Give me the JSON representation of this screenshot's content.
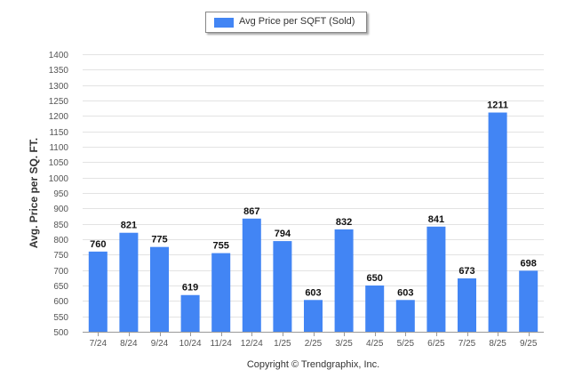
{
  "chart_data": {
    "type": "bar",
    "title": "",
    "xlabel": "",
    "ylabel": "Avg. Price per SQ. FT.",
    "ylim": [
      500,
      1400
    ],
    "ytick_step": 50,
    "grid": true,
    "legend_position": "top-center",
    "categories": [
      "7/24",
      "8/24",
      "9/24",
      "10/24",
      "11/24",
      "12/24",
      "1/25",
      "2/25",
      "3/25",
      "4/25",
      "5/25",
      "6/25",
      "7/25",
      "8/25",
      "9/25"
    ],
    "series": [
      {
        "name": "Avg Price per SQFT (Sold)",
        "color": "#4285f4",
        "values": [
          760,
          821,
          775,
          619,
          755,
          867,
          794,
          603,
          832,
          650,
          603,
          841,
          673,
          1211,
          698
        ]
      }
    ],
    "data_labels": true
  },
  "credit": "Copyright © Trendgraphix, Inc."
}
